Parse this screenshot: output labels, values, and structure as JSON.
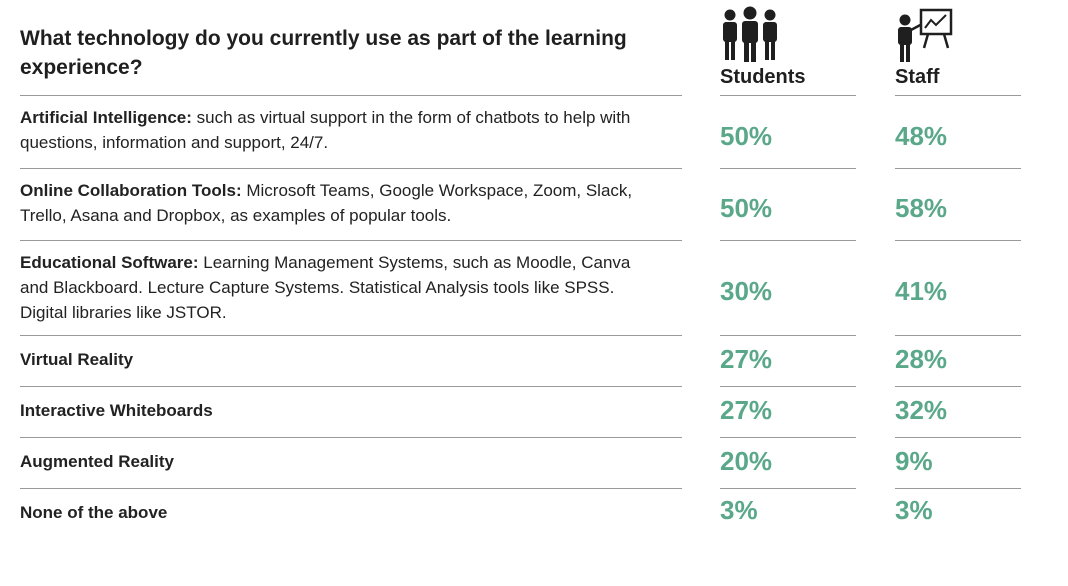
{
  "question": "What technology do you currently use as part of the learning experience?",
  "icons": {
    "students": "students-group-icon",
    "staff": "teacher-whiteboard-icon"
  },
  "accent_color": "#5aa889",
  "chart_data": {
    "type": "table",
    "title": "What technology do you currently use as part of the learning experience?",
    "columns": [
      "Students",
      "Staff"
    ],
    "rows": [
      {
        "label": "Artificial Intelligence:",
        "description": "such as virtual support in the form of chatbots to help with questions, information and support, 24/7.",
        "students": "50%",
        "staff": "48%"
      },
      {
        "label": "Online Collaboration Tools:",
        "description": "Microsoft Teams, Google Workspace, Zoom, Slack, Trello, Asana and Dropbox, as examples of popular tools.",
        "students": "50%",
        "staff": "58%"
      },
      {
        "label": "Educational Software:",
        "description": "Learning Management Systems, such as Moodle, Canva and Blackboard. Lecture Capture Systems. Statistical Analysis tools like SPSS. Digital libraries like JSTOR.",
        "students": "30%",
        "staff": "41%"
      },
      {
        "label": "Virtual Reality",
        "description": "",
        "students": "27%",
        "staff": "28%"
      },
      {
        "label": "Interactive Whiteboards",
        "description": "",
        "students": "27%",
        "staff": "32%"
      },
      {
        "label": "Augmented Reality",
        "description": "",
        "students": "20%",
        "staff": "9%"
      },
      {
        "label": "None of the above",
        "description": "",
        "students": "3%",
        "staff": "3%"
      }
    ]
  }
}
